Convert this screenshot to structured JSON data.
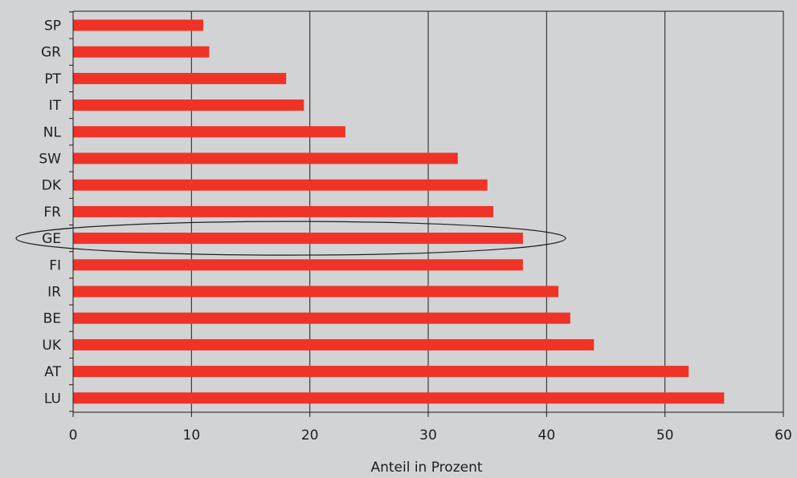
{
  "chart_data": {
    "type": "bar",
    "orientation": "horizontal",
    "categories": [
      "SP",
      "GR",
      "PT",
      "IT",
      "NL",
      "SW",
      "DK",
      "FR",
      "GE",
      "FI",
      "IR",
      "BE",
      "UK",
      "AT",
      "LU"
    ],
    "values": [
      11,
      11.5,
      18,
      19.5,
      23,
      32.5,
      35,
      35.5,
      38,
      38,
      41,
      42,
      44,
      52,
      55
    ],
    "xlabel": "Anteil in Prozent",
    "ylabel": "",
    "xlim": [
      0,
      60
    ],
    "xticks": [
      0,
      10,
      20,
      30,
      40,
      50,
      60
    ],
    "grid": "vertical",
    "bar_color": "#ef3327",
    "background_color": "#d2d3d5",
    "highlighted_category": "GE"
  }
}
